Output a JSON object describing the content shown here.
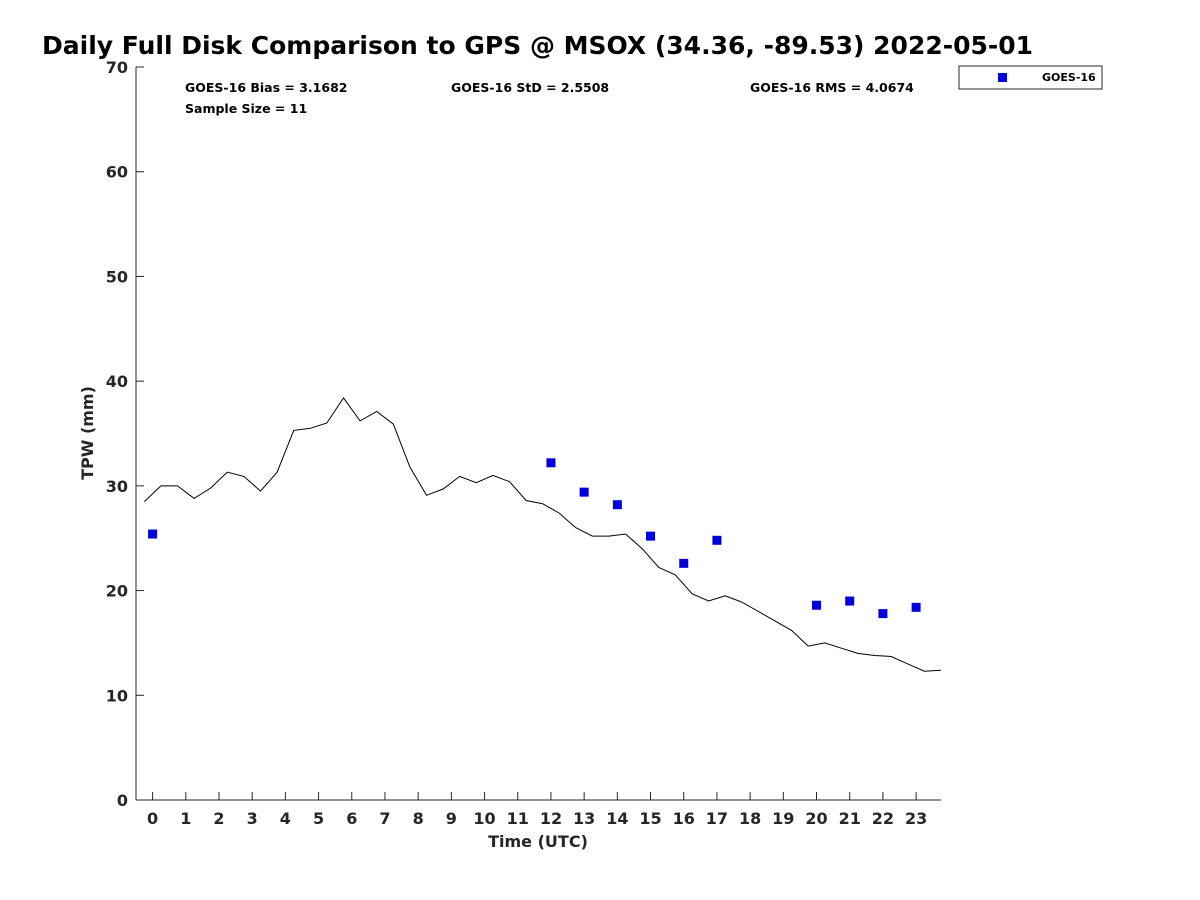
{
  "chart_data": {
    "type": "scatter",
    "title": "Daily Full Disk Comparison to GPS @ MSOX (34.36, -89.53) 2022-05-01",
    "xlabel": "Time (UTC)",
    "ylabel": "TPW (mm)",
    "xlim": [
      -0.5,
      23.75
    ],
    "ylim": [
      0,
      70
    ],
    "x_ticks": [
      0,
      1,
      2,
      3,
      4,
      5,
      6,
      7,
      8,
      9,
      10,
      11,
      12,
      13,
      14,
      15,
      16,
      17,
      18,
      19,
      20,
      21,
      22,
      23
    ],
    "y_ticks": [
      0,
      10,
      20,
      30,
      40,
      50,
      60,
      70
    ],
    "grid": false,
    "legend_position": "top-right",
    "stats": {
      "bias": "GOES-16 Bias = 3.1682",
      "std": "GOES-16 StD = 2.5508",
      "rms": "GOES-16 RMS = 4.0674",
      "sample": "Sample Size = 11"
    },
    "series": [
      {
        "name": "GOES-16",
        "kind": "markers",
        "color": "#0000dd",
        "x": [
          0,
          12,
          13,
          14,
          15,
          16,
          17,
          20,
          21,
          22,
          23
        ],
        "y": [
          25.4,
          32.2,
          29.4,
          28.2,
          25.2,
          22.6,
          24.8,
          18.6,
          19.0,
          17.8,
          18.4
        ]
      },
      {
        "kind": "line",
        "color": "#000000",
        "x": [
          -0.25,
          0.25,
          0.75,
          1.25,
          1.75,
          2.25,
          2.75,
          3.25,
          3.75,
          4.25,
          4.75,
          5.25,
          5.75,
          6.25,
          6.75,
          7.25,
          7.75,
          8.25,
          8.75,
          9.25,
          9.75,
          10.25,
          10.75,
          11.25,
          11.75,
          12.25,
          12.75,
          13.25,
          13.75,
          14.25,
          14.75,
          15.25,
          15.75,
          16.25,
          16.75,
          17.25,
          17.75,
          18.25,
          18.75,
          19.25,
          19.75,
          20.25,
          20.75,
          21.25,
          21.75,
          22.25,
          22.75,
          23.25,
          23.75
        ],
        "y": [
          28.5,
          30.0,
          30.0,
          28.8,
          29.8,
          31.3,
          30.9,
          29.5,
          31.3,
          35.3,
          35.5,
          36.0,
          38.4,
          36.2,
          37.1,
          35.9,
          31.8,
          29.1,
          29.7,
          30.9,
          30.3,
          31.0,
          30.4,
          28.6,
          28.3,
          27.4,
          26.0,
          25.2,
          25.2,
          25.4,
          24.0,
          22.2,
          21.5,
          19.7,
          19.0,
          19.5,
          18.9,
          18.0,
          17.1,
          16.2,
          14.7,
          15.0,
          14.5,
          14.0,
          13.8,
          13.7,
          13.0,
          12.3,
          12.4
        ]
      }
    ]
  }
}
